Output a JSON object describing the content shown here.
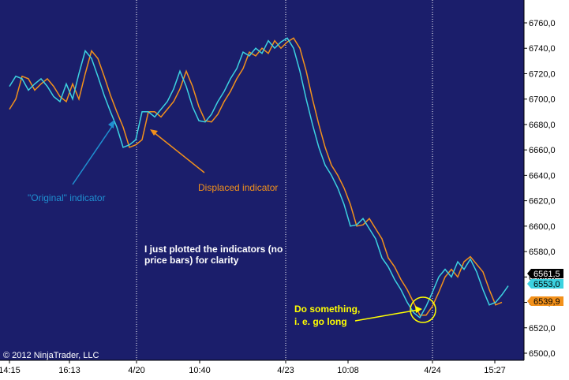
{
  "chart_data": {
    "type": "line",
    "title": "",
    "xlabel": "",
    "ylabel": "",
    "ylim": [
      6495,
      6775
    ],
    "y_ticks": [
      "6760,0",
      "6740,0",
      "6720,0",
      "6700,0",
      "6680,0",
      "6660,0",
      "6640,0",
      "6620,0",
      "6600,0",
      "6580,0",
      "6560,0",
      "6540,0",
      "6520,0",
      "6500,0"
    ],
    "x_ticks": [
      "14:15",
      "16:13",
      "4/20",
      "10:40",
      "4/23",
      "10:08",
      "4/24",
      "15:27"
    ],
    "session_breaks": [
      "4/20",
      "4/23",
      "4/24"
    ],
    "grid": false,
    "colors": {
      "background": "#1b1e6b",
      "original": "#3cd2e0",
      "displaced": "#f2911b",
      "axis_bg": "#ffffff",
      "annotation_yellow": "#ffff00"
    },
    "series": [
      {
        "values": [
          6710,
          6718,
          6716,
          6707,
          6712,
          6716,
          6710,
          6702,
          6698,
          6712,
          6700,
          6720,
          6738,
          6732,
          6718,
          6703,
          6690,
          6678,
          6662,
          6664,
          6668,
          6690,
          6690,
          6686,
          6692,
          6698,
          6708,
          6722,
          6710,
          6694,
          6683,
          6682,
          6688,
          6698,
          6706,
          6716,
          6724,
          6737,
          6734,
          6740,
          6736,
          6746,
          6740,
          6745,
          6748,
          6740,
          6722,
          6700,
          6680,
          6662,
          6648,
          6640,
          6630,
          6617,
          6600,
          6601,
          6606,
          6598,
          6590,
          6575,
          6568,
          6558,
          6550,
          6540,
          6532,
          6528,
          6537,
          6548,
          6560,
          6566,
          6560,
          6572,
          6566,
          6574,
          6564,
          6550,
          6538,
          6540,
          6546,
          6553
        ]
      },
      {
        "values": [
          6692,
          6700,
          6718,
          6716,
          6707,
          6712,
          6716,
          6710,
          6702,
          6698,
          6712,
          6700,
          6720,
          6738,
          6732,
          6718,
          6703,
          6690,
          6678,
          6662,
          6664,
          6668,
          6690,
          6690,
          6686,
          6692,
          6698,
          6708,
          6722,
          6710,
          6694,
          6683,
          6682,
          6688,
          6698,
          6706,
          6716,
          6724,
          6737,
          6734,
          6740,
          6736,
          6746,
          6740,
          6745,
          6748,
          6740,
          6722,
          6700,
          6680,
          6662,
          6648,
          6640,
          6630,
          6617,
          6600,
          6601,
          6606,
          6598,
          6590,
          6575,
          6568,
          6558,
          6550,
          6540,
          6530,
          6530,
          6537,
          6548,
          6560,
          6566,
          6560,
          6572,
          6576,
          6570,
          6564,
          6550,
          6538,
          6540
        ]
      }
    ],
    "price_tags": [
      "6561,5",
      "6553,0",
      "6539,9"
    ],
    "annotations": {
      "original": "\"Original\" indicator",
      "displaced": "Displaced indicator",
      "note_line1": "I just plotted the indicators (no",
      "note_line2": "price bars) for clarity",
      "action_line1": "Do something,",
      "action_line2": "i. e. go long"
    },
    "copyright": "© 2012 NinjaTrader, LLC"
  }
}
